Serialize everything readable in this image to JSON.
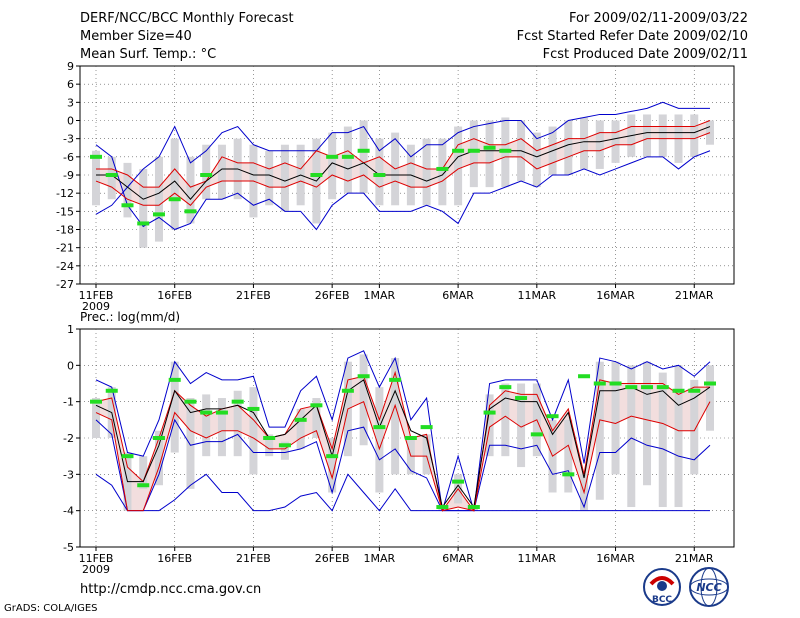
{
  "header": {
    "title": "DERF/NCC/BCC Monthly Forecast",
    "member_size": "Member Size=40",
    "variable": "Mean Surf. Temp.: °C",
    "period": "For 2009/02/11-2009/03/22",
    "started": "Fcst Started Refer Date 2009/02/10",
    "produced": "Fcst Produced Date 2009/02/11"
  },
  "footer": {
    "url": "http://cmdp.ncc.cma.gov.cn",
    "credit": "GrADS: COLA/IGES",
    "logo_bcc": "BCC",
    "logo_ncc": "NCC"
  },
  "colors": {
    "envelope": "#0000cc",
    "spread": "#dd0000",
    "mean": "#000000",
    "box": "#d4d4d8",
    "marker": "#22dd22",
    "grid": "#555555",
    "shade": "#f2dede"
  },
  "chart_data": [
    {
      "type": "box-line",
      "title": "Mean Surf. Temp.: °C",
      "xlabel": "",
      "ylabel": "",
      "ylim": [
        -27,
        9
      ],
      "yticks": [
        9,
        6,
        3,
        0,
        -3,
        -6,
        -9,
        -12,
        -15,
        -18,
        -21,
        -24,
        -27
      ],
      "xticks": [
        {
          "day": 1,
          "label": "11FEB"
        },
        {
          "day": 6,
          "label": "16FEB"
        },
        {
          "day": 11,
          "label": "21FEB"
        },
        {
          "day": 16,
          "label": "26FEB"
        },
        {
          "day": 19,
          "label": "1MAR"
        },
        {
          "day": 24,
          "label": "6MAR"
        },
        {
          "day": 29,
          "label": "11MAR"
        },
        {
          "day": 34,
          "label": "16MAR"
        },
        {
          "day": 39,
          "label": "21MAR"
        }
      ],
      "xlabel_year": "2009",
      "grid": true,
      "days": [
        1,
        2,
        3,
        4,
        5,
        6,
        7,
        8,
        9,
        10,
        11,
        12,
        13,
        14,
        15,
        16,
        17,
        18,
        19,
        20,
        21,
        22,
        23,
        24,
        25,
        26,
        27,
        28,
        29,
        30,
        31,
        32,
        33,
        34,
        35,
        36,
        37,
        38,
        39,
        40
      ],
      "series": [
        {
          "name": "max",
          "values": [
            -15.5,
            -14,
            -11,
            -8,
            -6,
            -1,
            -7,
            -5,
            -2,
            -1,
            -4,
            -5,
            -5,
            -5,
            -5,
            -2,
            -2,
            -1,
            -5,
            -3,
            -6,
            -4,
            -4,
            -2,
            -1,
            -0.5,
            0,
            0,
            -3,
            -2,
            0,
            0.5,
            1,
            1,
            1.5,
            2,
            3,
            2,
            2,
            2
          ]
        },
        {
          "name": "p75",
          "values": [
            -8,
            -8,
            -9,
            -11,
            -11,
            -8,
            -11,
            -10,
            -6,
            -7,
            -7,
            -8,
            -7,
            -8,
            -5,
            -6,
            -5,
            -7,
            -6,
            -8,
            -7,
            -8,
            -8,
            -4,
            -3,
            -4,
            -4,
            -3,
            -5,
            -4,
            -3,
            -3,
            -2,
            -2,
            -1,
            -1,
            -1,
            -1,
            -1,
            0
          ]
        },
        {
          "name": "mean",
          "values": [
            -9,
            -9,
            -11,
            -13,
            -12,
            -10,
            -13,
            -10,
            -8,
            -8,
            -9,
            -9,
            -10,
            -9,
            -10,
            -7,
            -8,
            -7,
            -9,
            -9,
            -9,
            -10,
            -9,
            -6,
            -5,
            -5,
            -5,
            -5,
            -6,
            -5,
            -4,
            -3.5,
            -3.5,
            -3,
            -2.5,
            -2,
            -2,
            -2,
            -2,
            -1
          ]
        },
        {
          "name": "p25",
          "values": [
            -10,
            -11,
            -13,
            -14,
            -14,
            -12,
            -14,
            -11,
            -10,
            -10,
            -10,
            -11,
            -11,
            -10,
            -11,
            -9,
            -10,
            -9,
            -11,
            -10,
            -11,
            -11,
            -10,
            -8,
            -7,
            -7,
            -6,
            -6,
            -8,
            -7,
            -6,
            -5,
            -5,
            -4,
            -4,
            -3,
            -3,
            -3,
            -3,
            -2
          ]
        },
        {
          "name": "min",
          "values": [
            -4,
            -6,
            -14,
            -17.5,
            -16,
            -18,
            -17,
            -13,
            -13,
            -12,
            -14,
            -13,
            -15,
            -15,
            -18,
            -14,
            -12,
            -12,
            -15,
            -15,
            -15,
            -14,
            -15,
            -17,
            -12,
            -12,
            -11,
            -10,
            -11,
            -9,
            -9,
            -8,
            -9,
            -8,
            -7,
            -6,
            -6,
            -8,
            -6,
            -5
          ]
        },
        {
          "name": "box_top",
          "values": [
            -5,
            -6,
            -7,
            -8,
            -6,
            -3,
            -6,
            -4,
            -4,
            -3,
            -4,
            -5,
            -4,
            -4,
            -3,
            -2,
            -1,
            0,
            -3,
            -2,
            -4,
            -3,
            -3,
            -1,
            0,
            0,
            0.5,
            0,
            -2,
            -1,
            0,
            0.5,
            0,
            0,
            1,
            1,
            1,
            1,
            1,
            0
          ]
        },
        {
          "name": "box_bottom",
          "values": [
            -14,
            -13,
            -16,
            -21,
            -20,
            -18,
            -17,
            -13,
            -13,
            -13,
            -16,
            -14,
            -15,
            -14,
            -17,
            -13,
            -12,
            -12,
            -14,
            -14,
            -14,
            -14,
            -14,
            -14,
            -11,
            -11,
            -11,
            -10,
            -11,
            -9,
            -9,
            -8,
            -8,
            -7,
            -6,
            -6,
            -6,
            -7,
            -6,
            -4
          ]
        },
        {
          "name": "observed",
          "values": [
            -6,
            -9,
            -14,
            -17,
            -15.5,
            -13,
            -15,
            -9,
            null,
            null,
            null,
            null,
            null,
            null,
            -9,
            -6,
            -6,
            -5,
            -9,
            null,
            null,
            null,
            -8,
            -5,
            -5,
            -4.5,
            -5,
            null,
            null,
            null,
            null,
            null,
            null,
            null,
            null,
            null,
            null,
            null,
            null,
            null
          ]
        }
      ]
    },
    {
      "type": "box-line",
      "title": "Prec.: log(mm/d)",
      "xlabel": "",
      "ylabel": "",
      "ylim": [
        -5,
        1
      ],
      "yticks": [
        1,
        0,
        -1,
        -2,
        -3,
        -4,
        -5
      ],
      "xticks": [
        {
          "day": 1,
          "label": "11FEB"
        },
        {
          "day": 6,
          "label": "16FEB"
        },
        {
          "day": 11,
          "label": "21FEB"
        },
        {
          "day": 16,
          "label": "26FEB"
        },
        {
          "day": 19,
          "label": "1MAR"
        },
        {
          "day": 24,
          "label": "6MAR"
        },
        {
          "day": 29,
          "label": "11MAR"
        },
        {
          "day": 34,
          "label": "16MAR"
        },
        {
          "day": 39,
          "label": "21MAR"
        }
      ],
      "xlabel_year": "2009",
      "grid": true,
      "days": [
        1,
        2,
        3,
        4,
        5,
        6,
        7,
        8,
        9,
        10,
        11,
        12,
        13,
        14,
        15,
        16,
        17,
        18,
        19,
        20,
        21,
        22,
        23,
        24,
        25,
        26,
        27,
        28,
        29,
        30,
        31,
        32,
        33,
        34,
        35,
        36,
        37,
        38,
        39,
        40
      ],
      "series": [
        {
          "name": "max",
          "values": [
            -0.4,
            -0.6,
            -2.4,
            -2.5,
            -1.5,
            0.1,
            -0.5,
            -0.2,
            -0.4,
            -0.4,
            -0.3,
            -1.7,
            -1.7,
            -0.7,
            -0.3,
            -1.5,
            0.2,
            0.4,
            -0.6,
            0.2,
            -1.5,
            -0.9,
            -4,
            -2.5,
            -4,
            -0.5,
            -0.4,
            -0.4,
            -0.4,
            -1.5,
            -0.4,
            -2.7,
            0.2,
            0.1,
            -0.1,
            0.1,
            -0.1,
            0,
            -0.3,
            0.1
          ]
        },
        {
          "name": "p75",
          "values": [
            -1.0,
            -0.9,
            -2.8,
            -3.2,
            -2.0,
            -0.7,
            -1.1,
            -1.4,
            -1.2,
            -1.1,
            -1.5,
            -2.0,
            -1.9,
            -1.2,
            -1.1,
            -2.3,
            -0.4,
            -0.3,
            -1.5,
            -0.2,
            -2.0,
            -1.9,
            -4,
            -3.4,
            -4,
            -1.1,
            -0.7,
            -0.8,
            -0.8,
            -1.8,
            -1.2,
            -3.0,
            -0.4,
            -0.5,
            -0.5,
            -0.5,
            -0.5,
            -0.8,
            -0.6,
            -0.6
          ]
        },
        {
          "name": "mean",
          "values": [
            -1.1,
            -1.3,
            -3.2,
            -3.2,
            -2.2,
            -0.7,
            -1.3,
            -1.2,
            -1.2,
            -1.1,
            -1.3,
            -2.0,
            -1.9,
            -1.5,
            -1.1,
            -2.5,
            -0.7,
            -0.4,
            -1.7,
            -0.7,
            -1.8,
            -2.0,
            -3.9,
            -3.3,
            -3.9,
            -1.2,
            -0.9,
            -1.0,
            -1.0,
            -1.9,
            -1.3,
            -3.1,
            -0.7,
            -0.7,
            -0.6,
            -0.8,
            -0.7,
            -1.1,
            -0.9,
            -0.6
          ]
        },
        {
          "name": "p25",
          "values": [
            -1.3,
            -1.5,
            -4,
            -4,
            -2.8,
            -1.3,
            -1.8,
            -2.0,
            -1.8,
            -1.8,
            -2.0,
            -2.3,
            -2.3,
            -2.0,
            -1.8,
            -3.1,
            -1.2,
            -1.0,
            -2.3,
            -1.1,
            -2.5,
            -2.5,
            -4,
            -3.9,
            -4,
            -1.7,
            -1.4,
            -1.7,
            -1.5,
            -2.5,
            -2.2,
            -3.5,
            -1.5,
            -1.6,
            -1.4,
            -1.5,
            -1.6,
            -1.8,
            -1.8,
            -1.0
          ]
        },
        {
          "name": "min",
          "values": [
            -1.5,
            -1.9,
            -4,
            -4,
            -3.0,
            -1.5,
            -2.2,
            -2.1,
            -2.1,
            -1.9,
            -2.4,
            -2.4,
            -2.4,
            -2.3,
            -2.1,
            -3.5,
            -1.8,
            -1.7,
            -2.6,
            -2.3,
            -2.9,
            -3.1,
            -4,
            -4,
            -4,
            -2.2,
            -2.2,
            -2.3,
            -2.2,
            -3.0,
            -2.9,
            -3.9,
            -2.4,
            -2.4,
            -2.0,
            -2.2,
            -2.3,
            -2.5,
            -2.6,
            -2.2
          ]
        },
        {
          "name": "bottom_envelope",
          "values": [
            -3.0,
            -3.3,
            -4,
            -4,
            -4,
            -3.7,
            -3.3,
            -3.0,
            -3.5,
            -3.5,
            -4,
            -4,
            -3.9,
            -3.6,
            -3.5,
            -4,
            -3.0,
            -3.5,
            -4,
            -3.4,
            -4,
            -4,
            -4,
            -4,
            -4,
            -4,
            -4,
            -4,
            -4,
            -4,
            -4,
            -4,
            -4,
            -4,
            -4,
            -4,
            -4,
            -4,
            -4,
            -4
          ]
        },
        {
          "name": "box_top",
          "values": [
            -0.9,
            -0.6,
            -2.4,
            -2.5,
            -1.8,
            0.1,
            -0.9,
            -0.8,
            -0.9,
            -0.7,
            -0.6,
            -1.9,
            -2.1,
            -1.2,
            -0.9,
            -2.0,
            0.1,
            0.3,
            -0.6,
            0.2,
            -2.0,
            -1.9,
            -3.9,
            -3.0,
            -3.9,
            -0.8,
            -0.5,
            -0.5,
            -0.5,
            -1.5,
            -1.5,
            -3.0,
            0.1,
            0.1,
            0.0,
            0.1,
            -0.2,
            0.0,
            -0.4,
            0.0
          ]
        },
        {
          "name": "box_bottom",
          "values": [
            -2.0,
            -2.0,
            -4,
            -3.4,
            -3.3,
            -2.4,
            -3.4,
            -2.5,
            -2.5,
            -2.5,
            -3.0,
            -2.5,
            -2.6,
            -2.3,
            -2.0,
            -3.5,
            -2.5,
            -2.2,
            -3.5,
            -3.0,
            -3.0,
            -3.0,
            -4,
            -3.8,
            -4,
            -2.5,
            -2.5,
            -2.8,
            -2.5,
            -3.5,
            -3.5,
            -4,
            -3.7,
            -3.0,
            -3.9,
            -3.3,
            -3.9,
            -3.9,
            -3.0,
            -1.8
          ]
        },
        {
          "name": "observed",
          "values": [
            -1.0,
            -0.7,
            -2.5,
            -3.3,
            -2.0,
            -0.4,
            -1.0,
            -1.3,
            -1.3,
            -1.0,
            -1.2,
            -2.0,
            -2.2,
            -1.5,
            -1.1,
            -2.5,
            -0.7,
            -0.3,
            -1.7,
            -0.4,
            -2.0,
            -1.7,
            -3.9,
            -3.2,
            -3.9,
            -1.3,
            -0.6,
            -0.9,
            -1.9,
            -1.4,
            -3.0,
            -0.3,
            -0.5,
            -0.5,
            -0.6,
            -0.6,
            -0.6,
            -0.7,
            -0.7,
            -0.5
          ]
        }
      ]
    }
  ]
}
